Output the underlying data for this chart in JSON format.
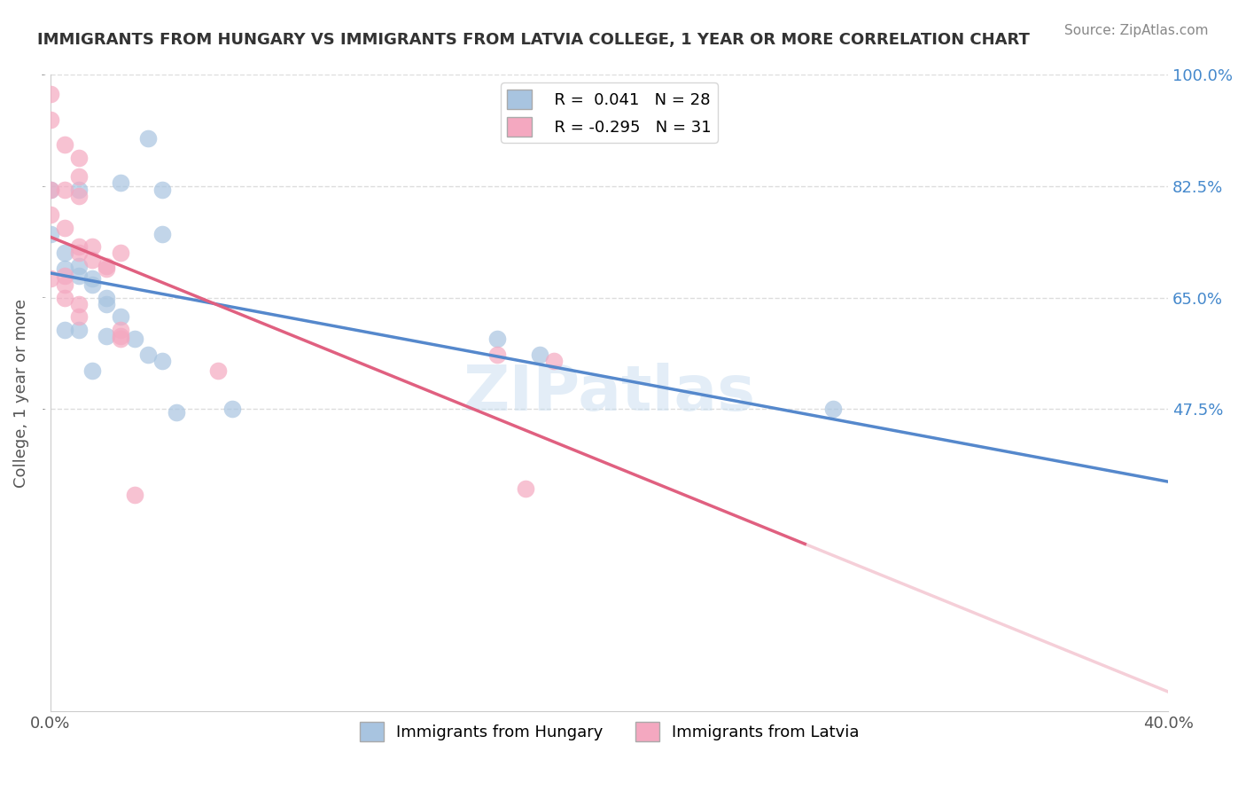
{
  "title": "IMMIGRANTS FROM HUNGARY VS IMMIGRANTS FROM LATVIA COLLEGE, 1 YEAR OR MORE CORRELATION CHART",
  "source": "Source: ZipAtlas.com",
  "ylabel": "College, 1 year or more",
  "xlabel": "",
  "xlim": [
    0.0,
    0.4
  ],
  "ylim": [
    0.0,
    1.0
  ],
  "xtick_labels": [
    "0.0%",
    "40.0%"
  ],
  "ytick_labels": [
    "100.0%",
    "82.5%",
    "65.0%",
    "47.5%"
  ],
  "ytick_positions": [
    1.0,
    0.825,
    0.65,
    0.475
  ],
  "legend_r1": "R =  0.041   N = 28",
  "legend_r2": "R = -0.295   N = 31",
  "color_hungary": "#a8c4e0",
  "color_latvia": "#f4a8c0",
  "color_line_hungary": "#5588cc",
  "color_line_latvia": "#e06080",
  "watermark": "ZIPatlas",
  "hungary_x": [
    0.035,
    0.025,
    0.04,
    0.0,
    0.01,
    0.0,
    0.04,
    0.005,
    0.01,
    0.005,
    0.01,
    0.015,
    0.015,
    0.02,
    0.02,
    0.025,
    0.005,
    0.01,
    0.02,
    0.03,
    0.16,
    0.175,
    0.035,
    0.04,
    0.015,
    0.065,
    0.28,
    0.045
  ],
  "hungary_y": [
    0.9,
    0.83,
    0.82,
    0.82,
    0.82,
    0.75,
    0.75,
    0.72,
    0.7,
    0.695,
    0.685,
    0.68,
    0.67,
    0.65,
    0.64,
    0.62,
    0.6,
    0.6,
    0.59,
    0.585,
    0.585,
    0.56,
    0.56,
    0.55,
    0.535,
    0.475,
    0.475,
    0.47
  ],
  "latvia_x": [
    0.0,
    0.0,
    0.005,
    0.01,
    0.01,
    0.0,
    0.005,
    0.01,
    0.0,
    0.005,
    0.01,
    0.015,
    0.01,
    0.025,
    0.015,
    0.02,
    0.02,
    0.005,
    0.0,
    0.005,
    0.005,
    0.01,
    0.01,
    0.025,
    0.025,
    0.025,
    0.16,
    0.18,
    0.06,
    0.03,
    0.17
  ],
  "latvia_y": [
    0.97,
    0.93,
    0.89,
    0.87,
    0.84,
    0.82,
    0.82,
    0.81,
    0.78,
    0.76,
    0.73,
    0.73,
    0.72,
    0.72,
    0.71,
    0.7,
    0.695,
    0.685,
    0.68,
    0.67,
    0.65,
    0.64,
    0.62,
    0.6,
    0.59,
    0.585,
    0.56,
    0.55,
    0.535,
    0.34,
    0.35
  ]
}
